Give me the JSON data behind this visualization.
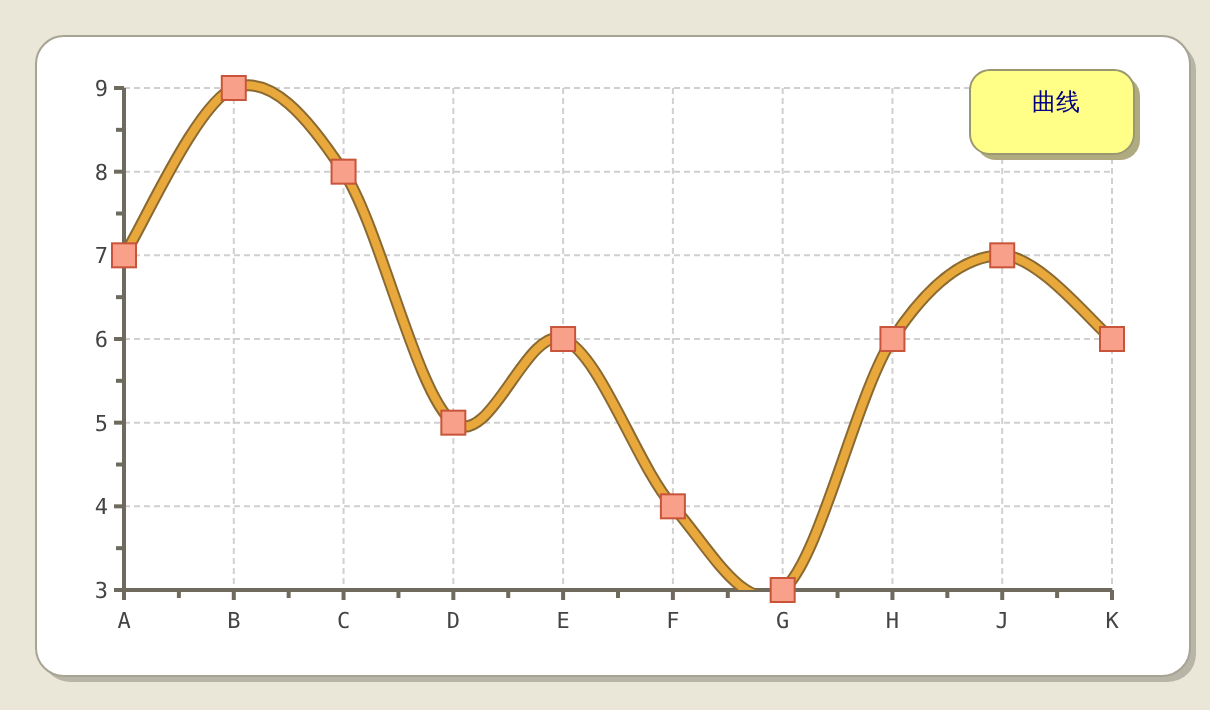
{
  "chart_data": {
    "type": "line",
    "categories": [
      "A",
      "B",
      "C",
      "D",
      "E",
      "F",
      "G",
      "H",
      "J",
      "K"
    ],
    "series": [
      {
        "name": "曲线",
        "color": "#e8a83c",
        "values": [
          7,
          9,
          8,
          5,
          6,
          4,
          3,
          6,
          7,
          6
        ]
      }
    ],
    "ylim": [
      3,
      9
    ],
    "yticks": [
      3,
      4,
      5,
      6,
      7,
      8,
      9
    ],
    "grid": true,
    "legend": "top right",
    "marker": "square"
  }
}
